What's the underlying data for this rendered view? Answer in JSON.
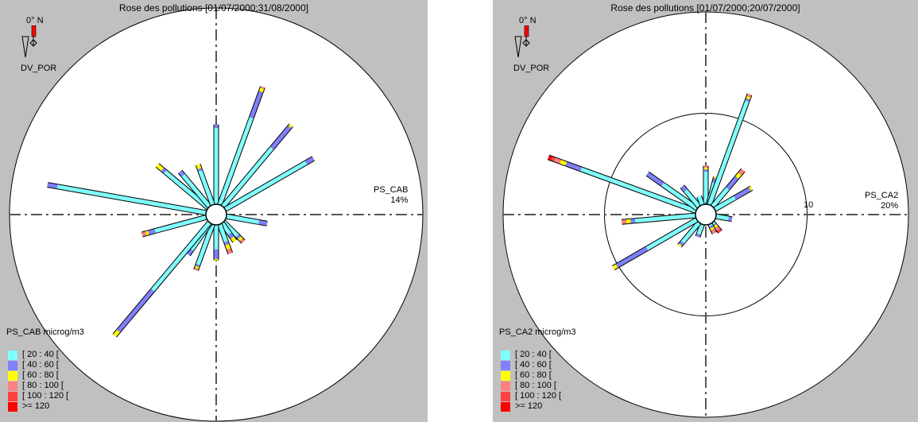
{
  "legend_classes": [
    {
      "label": "[ 20 : 40 [",
      "color": "#80ffff"
    },
    {
      "label": "[ 40 : 60 [",
      "color": "#8080ff"
    },
    {
      "label": "[ 60 : 80 [",
      "color": "#ffff00"
    },
    {
      "label": "[ 80 : 100 [",
      "color": "#ff8080"
    },
    {
      "label": "[ 100 : 120 [",
      "color": "#ff4040"
    },
    {
      "label": ">= 120",
      "color": "#ff0000"
    }
  ],
  "panels": [
    {
      "title": "Rose des pollutions [01/07/2000;31/08/2000]",
      "compass_label": "0° N",
      "station": "DV_POR",
      "pollutant": "PS_CAB",
      "max_percent": "14%",
      "legend_title": "PS_CAB microg/m3",
      "ring_label": ""
    },
    {
      "title": "Rose des pollutions [01/07/2000;20/07/2000]",
      "compass_label": "0° N",
      "station": "DV_POR",
      "pollutant": "PS_CA2",
      "max_percent": "20%",
      "legend_title": "PS_CA2 microg/m3",
      "ring_label": "10"
    }
  ],
  "chart_data": [
    {
      "type": "polar_bar",
      "title": "Rose des pollutions [01/07/2000;31/08/2000]",
      "radial_max_percent": 14,
      "series_name": "PS_CAB",
      "bars": [
        {
          "direction_deg": 0,
          "percent": 5.4,
          "classes": [
            0.96,
            0.04
          ]
        },
        {
          "direction_deg": 20,
          "percent": 8.5,
          "classes": [
            0.74,
            0.22,
            0.03,
            0.01
          ]
        },
        {
          "direction_deg": 40,
          "percent": 7.2,
          "classes": [
            0.72,
            0.26,
            0.02
          ]
        },
        {
          "direction_deg": 60,
          "percent": 6.9,
          "classes": [
            0.92,
            0.08
          ]
        },
        {
          "direction_deg": 100,
          "percent": 2.8,
          "classes": [
            0.8,
            0.2
          ]
        },
        {
          "direction_deg": 135,
          "percent": 1.9,
          "classes": [
            0.7,
            0.1,
            0.1,
            0.1
          ]
        },
        {
          "direction_deg": 145,
          "percent": 1.5,
          "classes": [
            0.6,
            0.2,
            0.2
          ]
        },
        {
          "direction_deg": 160,
          "percent": 2.1,
          "classes": [
            0.6,
            0.1,
            0.15,
            0.15
          ]
        },
        {
          "direction_deg": 180,
          "percent": 2.4,
          "classes": [
            0.7,
            0.26,
            0.04
          ]
        },
        {
          "direction_deg": 200,
          "percent": 3.3,
          "classes": [
            0.88,
            0.04,
            0.04,
            0.04
          ]
        },
        {
          "direction_deg": 215,
          "percent": 2.6,
          "classes": [
            0.85,
            0.15
          ]
        },
        {
          "direction_deg": 220,
          "percent": 10.0,
          "classes": [
            0.6,
            0.36,
            0.04
          ]
        },
        {
          "direction_deg": 255,
          "percent": 4.5,
          "classes": [
            0.8,
            0.1,
            0.04,
            0.06
          ]
        },
        {
          "direction_deg": 280,
          "percent": 10.9,
          "classes": [
            0.94,
            0.06
          ]
        },
        {
          "direction_deg": 310,
          "percent": 4.5,
          "classes": [
            0.85,
            0.05,
            0.1
          ]
        },
        {
          "direction_deg": 320,
          "percent": 3.1,
          "classes": [
            0.9,
            0.1
          ]
        },
        {
          "direction_deg": 340,
          "percent": 2.9,
          "classes": [
            0.85,
            0.05,
            0.1
          ]
        }
      ]
    },
    {
      "type": "polar_bar",
      "title": "Rose des pollutions [01/07/2000;20/07/2000]",
      "radial_max_percent": 20,
      "radial_ring": 10,
      "series_name": "PS_CA2",
      "bars": [
        {
          "direction_deg": 0,
          "percent": 3.8,
          "classes": [
            0.85,
            0.05,
            0.05,
            0.05
          ]
        },
        {
          "direction_deg": 15,
          "percent": 2.8,
          "classes": [
            0.8,
            0.15,
            0.05
          ]
        },
        {
          "direction_deg": 20,
          "percent": 11.6,
          "classes": [
            0.94,
            0.02,
            0.02,
            0.02
          ]
        },
        {
          "direction_deg": 40,
          "percent": 4.7,
          "classes": [
            0.5,
            0.3,
            0.1,
            0.1
          ]
        },
        {
          "direction_deg": 60,
          "percent": 4.2,
          "classes": [
            0.55,
            0.4,
            0.05
          ]
        },
        {
          "direction_deg": 100,
          "percent": 1.6,
          "classes": [
            0.8,
            0.2
          ]
        },
        {
          "direction_deg": 140,
          "percent": 1.2,
          "classes": [
            0.2,
            0.1,
            0.2,
            0.3,
            0.2
          ]
        },
        {
          "direction_deg": 155,
          "percent": 1.0,
          "classes": [
            0.2,
            0.2,
            0.2,
            0.4
          ]
        },
        {
          "direction_deg": 200,
          "percent": 1.3,
          "classes": [
            0.8,
            0.2
          ]
        },
        {
          "direction_deg": 220,
          "percent": 3.0,
          "classes": [
            0.85,
            0.1,
            0.05
          ]
        },
        {
          "direction_deg": 240,
          "percent": 9.5,
          "classes": [
            0.6,
            0.36,
            0.04
          ]
        },
        {
          "direction_deg": 265,
          "percent": 7.3,
          "classes": [
            0.82,
            0.06,
            0.06,
            0.06
          ]
        },
        {
          "direction_deg": 290,
          "percent": 15.5,
          "classes": [
            0.78,
            0.1,
            0.04,
            0.04,
            0.02,
            0.02
          ]
        },
        {
          "direction_deg": 305,
          "percent": 6.0,
          "classes": [
            0.7,
            0.3
          ]
        },
        {
          "direction_deg": 320,
          "percent": 2.6,
          "classes": [
            0.8,
            0.2
          ]
        },
        {
          "direction_deg": 340,
          "percent": 0.9,
          "classes": [
            1.0
          ]
        }
      ]
    }
  ]
}
